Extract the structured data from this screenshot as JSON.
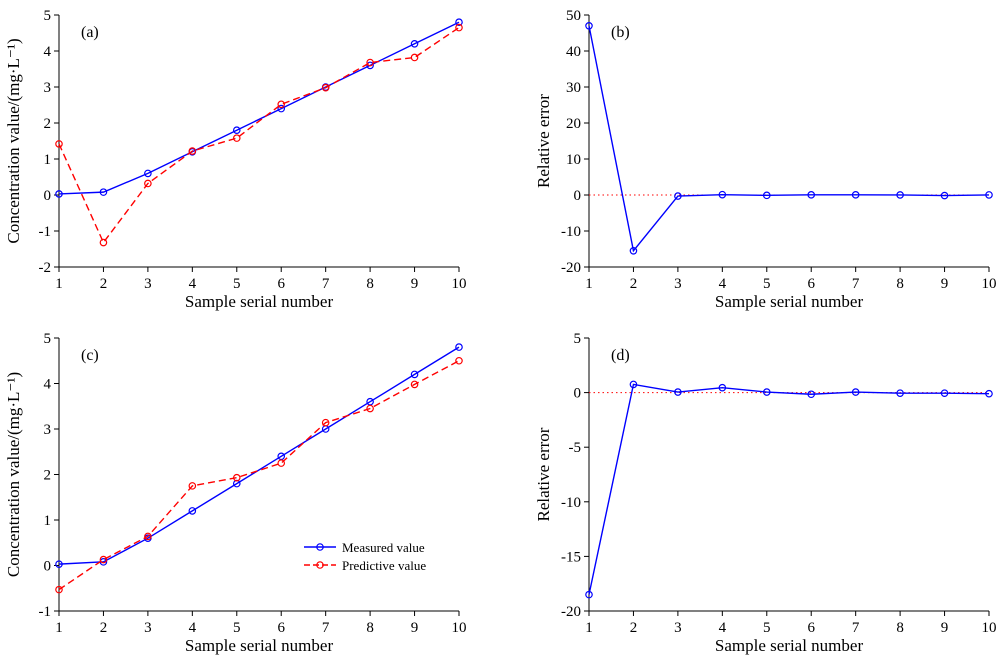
{
  "chart_data": [
    {
      "id": "a",
      "panel_label": "(a)",
      "type": "line",
      "xlabel": "Sample serial number",
      "ylabel": "Concentration value/(mg·L⁻¹)",
      "xlim": [
        1,
        10
      ],
      "ylim": [
        -2,
        5
      ],
      "x": [
        1,
        2,
        3,
        4,
        5,
        6,
        7,
        8,
        9,
        10
      ],
      "xticks": [
        1,
        2,
        3,
        4,
        5,
        6,
        7,
        8,
        9,
        10
      ],
      "yticks": [
        -2,
        -1,
        0,
        1,
        2,
        3,
        4,
        5
      ],
      "series": [
        {
          "name": "Measured value",
          "color": "#0000ff",
          "dash": "solid",
          "values": [
            0.03,
            0.08,
            0.6,
            1.2,
            1.8,
            2.4,
            3.0,
            3.6,
            4.2,
            4.8
          ]
        },
        {
          "name": "Predictive value",
          "color": "#ff0000",
          "dash": "dashed",
          "values": [
            1.42,
            -1.32,
            0.32,
            1.22,
            1.58,
            2.52,
            2.98,
            3.68,
            3.82,
            4.65
          ]
        }
      ]
    },
    {
      "id": "b",
      "panel_label": "(b)",
      "type": "line",
      "xlabel": "Sample serial number",
      "ylabel": "Relative error",
      "xlim": [
        1,
        10
      ],
      "ylim": [
        -20,
        50
      ],
      "x": [
        1,
        2,
        3,
        4,
        5,
        6,
        7,
        8,
        9,
        10
      ],
      "xticks": [
        1,
        2,
        3,
        4,
        5,
        6,
        7,
        8,
        9,
        10
      ],
      "yticks": [
        -20,
        -10,
        0,
        10,
        20,
        30,
        40,
        50
      ],
      "zero_line": true,
      "series": [
        {
          "color": "#0000ff",
          "dash": "solid",
          "values": [
            47.0,
            -15.5,
            -0.3,
            0.1,
            -0.1,
            0.05,
            0.05,
            0.02,
            -0.15,
            0.03
          ]
        }
      ]
    },
    {
      "id": "c",
      "panel_label": "(c)",
      "type": "line",
      "xlabel": "Sample serial number",
      "ylabel": "Concentration value/(mg·L⁻¹)",
      "xlim": [
        1,
        10
      ],
      "ylim": [
        -1,
        5
      ],
      "x": [
        1,
        2,
        3,
        4,
        5,
        6,
        7,
        8,
        9,
        10
      ],
      "xticks": [
        1,
        2,
        3,
        4,
        5,
        6,
        7,
        8,
        9,
        10
      ],
      "yticks": [
        -1,
        0,
        1,
        2,
        3,
        4,
        5
      ],
      "legend": {
        "placement": "lower-right",
        "entries": [
          "Measured value",
          "Predictive value"
        ]
      },
      "series": [
        {
          "name": "Measured value",
          "color": "#0000ff",
          "dash": "solid",
          "values": [
            0.03,
            0.08,
            0.6,
            1.2,
            1.8,
            2.4,
            3.0,
            3.6,
            4.2,
            4.8
          ]
        },
        {
          "name": "Predictive value",
          "color": "#ff0000",
          "dash": "dashed",
          "values": [
            -0.53,
            0.13,
            0.64,
            1.75,
            1.93,
            2.25,
            3.14,
            3.45,
            3.98,
            4.5
          ]
        }
      ]
    },
    {
      "id": "d",
      "panel_label": "(d)",
      "type": "line",
      "xlabel": "Sample serial number",
      "ylabel": "Relative error",
      "xlim": [
        1,
        10
      ],
      "ylim": [
        -20,
        5
      ],
      "x": [
        1,
        2,
        3,
        4,
        5,
        6,
        7,
        8,
        9,
        10
      ],
      "xticks": [
        1,
        2,
        3,
        4,
        5,
        6,
        7,
        8,
        9,
        10
      ],
      "yticks": [
        -20,
        -15,
        -10,
        -5,
        0,
        5
      ],
      "zero_line": true,
      "series": [
        {
          "color": "#0000ff",
          "dash": "solid",
          "values": [
            -18.5,
            0.75,
            0.05,
            0.45,
            0.05,
            -0.15,
            0.05,
            -0.05,
            -0.05,
            -0.1
          ]
        }
      ]
    }
  ]
}
